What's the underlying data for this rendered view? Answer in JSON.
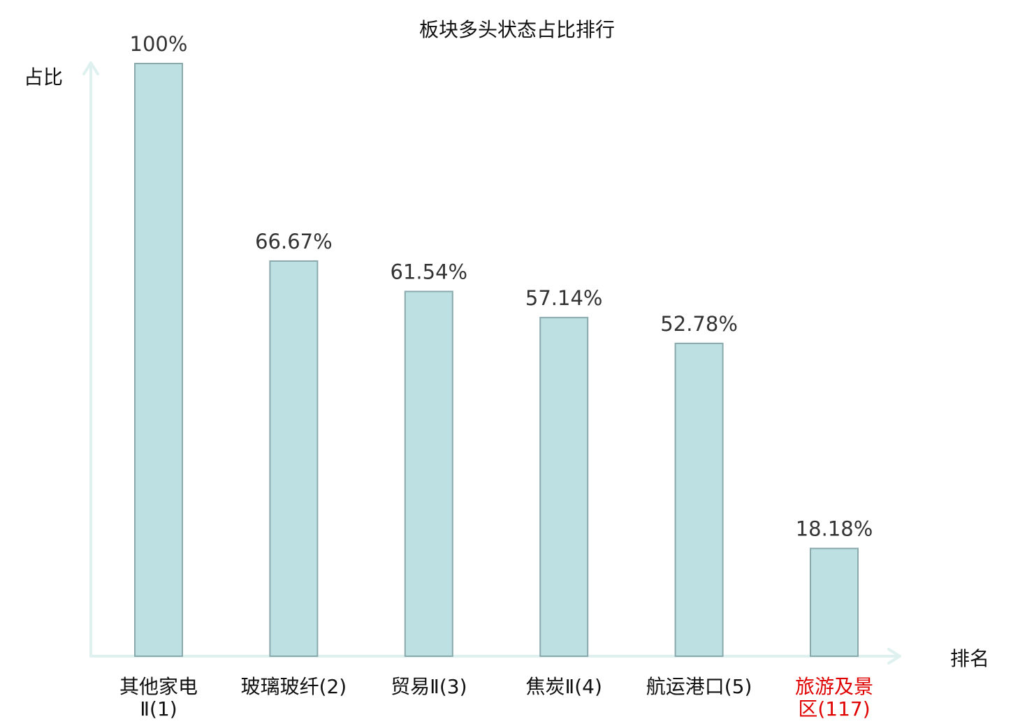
{
  "chart_data": {
    "type": "bar",
    "title": "板块多头状态占比排行",
    "ylabel": "占比",
    "xlabel": "排名",
    "ylim": [
      0,
      100
    ],
    "categories": [
      {
        "name": "其他家电Ⅱ",
        "rank": "(1)",
        "lines": [
          "其他家电",
          "Ⅱ(1)"
        ],
        "highlight": false
      },
      {
        "name": "玻璃玻纤",
        "rank": "(2)",
        "lines": [
          "玻璃玻纤(2)"
        ],
        "highlight": false
      },
      {
        "name": "贸易Ⅱ",
        "rank": "(3)",
        "lines": [
          "贸易Ⅱ(3)"
        ],
        "highlight": false
      },
      {
        "name": "焦炭Ⅱ",
        "rank": "(4)",
        "lines": [
          "焦炭Ⅱ(4)"
        ],
        "highlight": false
      },
      {
        "name": "航运港口",
        "rank": "(5)",
        "lines": [
          "航运港口(5)"
        ],
        "highlight": false
      },
      {
        "name": "旅游及景区",
        "rank": "(117)",
        "lines": [
          "旅游及景",
          "区(117)"
        ],
        "highlight": true
      }
    ],
    "values": [
      100,
      66.67,
      61.54,
      57.14,
      52.78,
      18.18
    ],
    "value_labels": [
      "100%",
      "66.67%",
      "61.54%",
      "57.14%",
      "52.78%",
      "18.18%"
    ],
    "grid": false,
    "colors": {
      "bar_fill": "#bde0e3",
      "bar_stroke": "#8aa9ad",
      "axis": "#dff1ef",
      "highlight_text": "#e00000"
    }
  }
}
